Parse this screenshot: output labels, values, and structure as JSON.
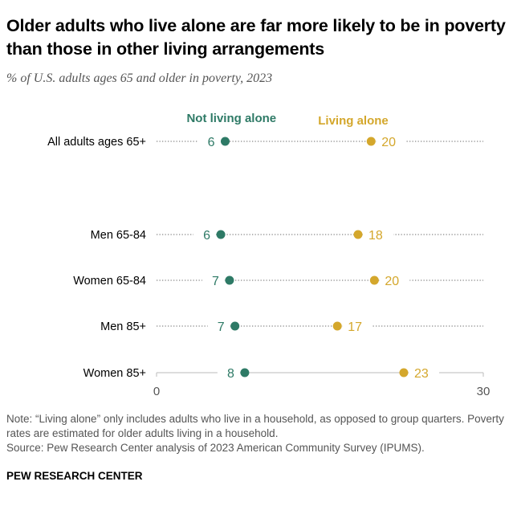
{
  "title": "Older adults who live alone are far more likely to be in poverty than those in other living arrangements",
  "subtitle": "% of U.S. adults ages 65 and older in poverty, 2023",
  "note": "Note: “Living alone” only includes adults who live in a household, as opposed to group quarters. Poverty rates are estimated for older adults living in a household.",
  "source": "Source: Pew Research Center analysis of 2023 American Community Survey (IPUMS).",
  "brand": "PEW RESEARCH CENTER",
  "chart_data": {
    "type": "dot",
    "xlim": [
      0,
      30
    ],
    "xticks": [
      "0",
      "30"
    ],
    "legend": [
      {
        "name": "Not living alone",
        "color": "#2e7a66"
      },
      {
        "name": "Living alone",
        "color": "#d4a72c"
      }
    ],
    "categories": [
      "All adults ages 65+",
      "Men 65-84",
      "Women 65-84",
      "Men 85+",
      "Women 85+"
    ],
    "series": [
      {
        "name": "Not living alone",
        "values": [
          6.3,
          5.9,
          6.7,
          7.2,
          8.1
        ],
        "labels": [
          "6",
          "6",
          "7",
          "7",
          "8"
        ]
      },
      {
        "name": "Living alone",
        "values": [
          19.7,
          18.5,
          20.0,
          16.6,
          22.7
        ],
        "labels": [
          "20",
          "18",
          "20",
          "17",
          "23"
        ]
      }
    ]
  }
}
